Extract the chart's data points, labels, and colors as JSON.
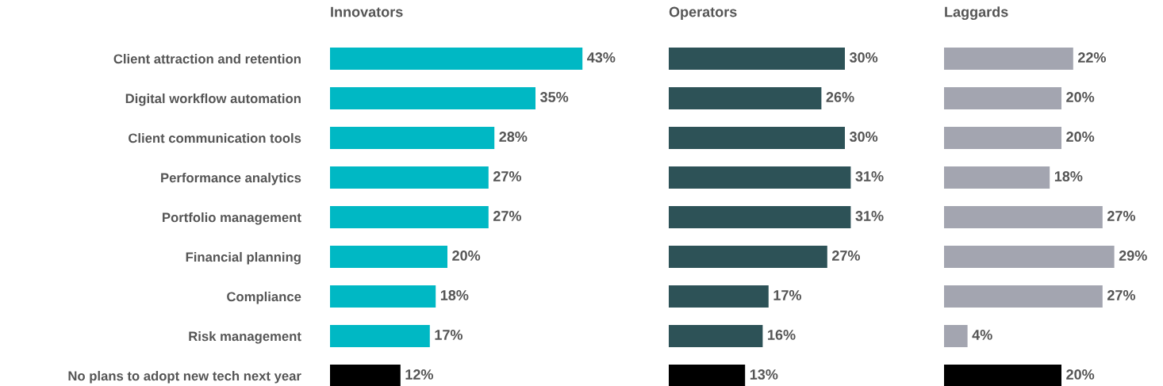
{
  "chart_data": [
    {
      "type": "bar",
      "orientation": "horizontal",
      "title": "Innovators",
      "tick_labels": "y",
      "categories": [
        "Client attraction and retention",
        "Digital workflow automation",
        "Client communication tools",
        "Performance analytics",
        "Portfolio management",
        "Financial planning",
        "Compliance",
        "Risk management",
        "No plans to adopt new tech next year"
      ],
      "values": [
        43,
        35,
        28,
        27,
        27,
        20,
        18,
        17,
        12
      ],
      "value_labels": [
        "43%",
        "35%",
        "28%",
        "27%",
        "27%",
        "20%",
        "18%",
        "17%",
        "12%"
      ],
      "colors": [
        "#00b8c4",
        "#00b8c4",
        "#00b8c4",
        "#00b8c4",
        "#00b8c4",
        "#00b8c4",
        "#00b8c4",
        "#00b8c4",
        "#000000"
      ]
    },
    {
      "type": "bar",
      "orientation": "horizontal",
      "title": "Operators",
      "tick_labels": false,
      "categories": [
        null,
        null,
        null,
        null,
        null,
        null,
        null,
        null,
        null
      ],
      "values": [
        30,
        26,
        30,
        31,
        31,
        27,
        17,
        16,
        13
      ],
      "value_labels": [
        "30%",
        "26%",
        "30%",
        "31%",
        "31%",
        "27%",
        "17%",
        "16%",
        "13%"
      ],
      "colors": [
        "#2d5257",
        "#2d5257",
        "#2d5257",
        "#2d5257",
        "#2d5257",
        "#2d5257",
        "#2d5257",
        "#2d5257",
        "#000000"
      ]
    },
    {
      "type": "bar",
      "orientation": "horizontal",
      "title": "Laggards",
      "tick_labels": false,
      "categories": [
        null,
        null,
        null,
        null,
        null,
        null,
        null,
        null,
        null
      ],
      "values": [
        22,
        20,
        20,
        18,
        27,
        29,
        27,
        4,
        20
      ],
      "value_labels": [
        "22%",
        "20%",
        "20%",
        "18%",
        "27%",
        "29%",
        "27%",
        "4%",
        "20%"
      ],
      "colors": [
        "#a3a5b0",
        "#a3a5b0",
        "#a3a5b0",
        "#a3a5b0",
        "#a3a5b0",
        "#a3a5b0",
        "#a3a5b0",
        "#a3a5b0",
        "#000000"
      ]
    }
  ]
}
